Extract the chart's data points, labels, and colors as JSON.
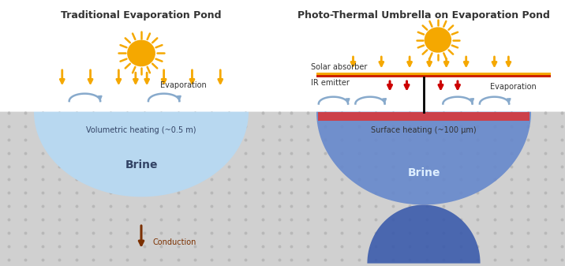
{
  "title_left": "Traditional Evaporation Pond",
  "title_right": "Photo-Thermal Umbrella on Evaporation Pond",
  "bg_color": "#ffffff",
  "ground_color": "#d0d0d0",
  "ground_dot_color": "#b8b8b8",
  "brine_left_color": "#b8d8f0",
  "brine_right_top_color": "#cc2222",
  "brine_right_mid_color": "#6688cc",
  "brine_right_bot_color": "#3355aa",
  "surface_heat_color": "#dd3333",
  "sun_body_color": "#f5a800",
  "sun_ray_color": "#f5a800",
  "ir_arrow_color": "#cc0000",
  "conduction_arrow_color": "#7b3000",
  "evap_arrow_color": "#88aacc",
  "solar_bar_top_color": "#f5a800",
  "solar_bar_bot_color": "#cc2200",
  "label_vol_heating": "Volumetric heating (~0.5 m)",
  "label_surface_heating": "Surface heating (~100 μm)",
  "label_brine": "Brine",
  "label_evaporation_left": "Evaporation",
  "label_evaporation_right": "Evaporation",
  "label_conduction": "Conduction",
  "label_solar_absorber": "Solar absorber",
  "label_ir_emitter": "IR emitter",
  "text_color": "#333333",
  "brine_text_left": "#334466",
  "brine_text_right": "#223366"
}
